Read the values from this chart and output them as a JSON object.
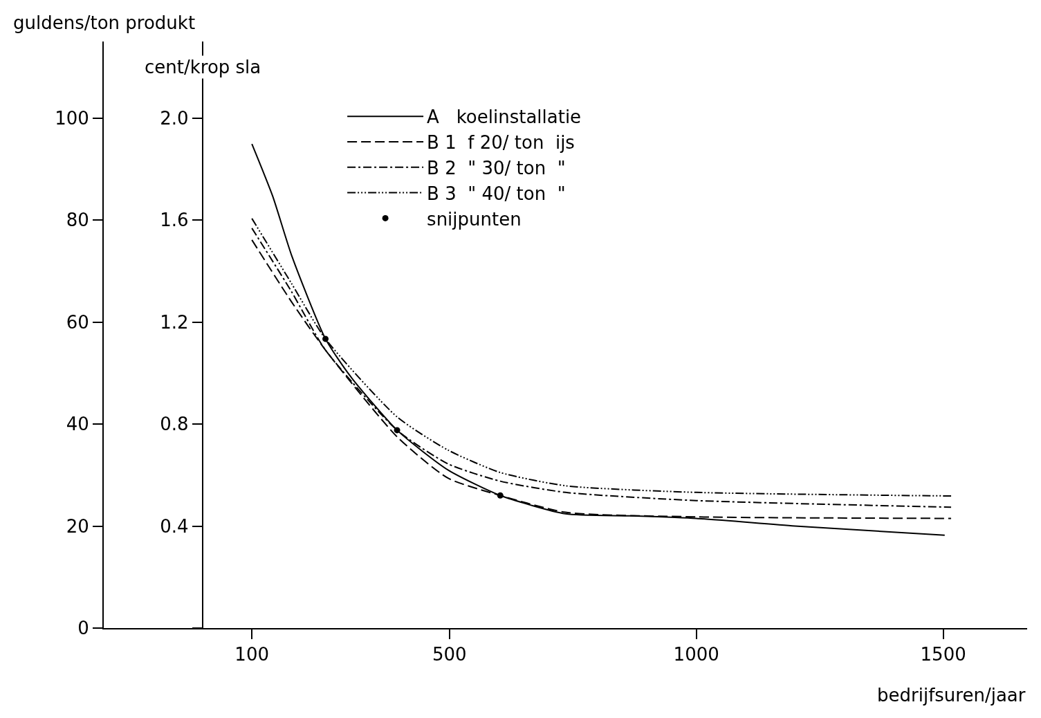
{
  "chart_data": {
    "type": "line",
    "xlabel": "bedrijfsuren/jaar",
    "ylabel": "guldens/ton produkt",
    "y2label": "cent/krop sla",
    "xlim": [
      -200,
      1670
    ],
    "xticks": [
      100,
      500,
      1000,
      1500
    ],
    "ylim": [
      0,
      115
    ],
    "yticks": [
      0,
      20,
      40,
      60,
      80,
      100
    ],
    "y2lim": [
      0,
      2.3
    ],
    "y2ticks": [
      {
        "value": 0,
        "label": null
      },
      {
        "value": 0.4,
        "label": "0.4"
      },
      {
        "value": 0.8,
        "label": "0.8"
      },
      {
        "value": 1.2,
        "label": "1.2"
      },
      {
        "value": 1.6,
        "label": "1.6"
      },
      {
        "value": 2.0,
        "label": "2.0"
      }
    ],
    "legend": "top",
    "marker": "none",
    "series": [
      {
        "name": "A   koelinstallatie",
        "color": "#000000",
        "line_style": "solid",
        "x": [
          100,
          142,
          181,
          249,
          300,
          394,
          497,
          603,
          735,
          868,
          1000,
          1200,
          1503
        ],
        "values": [
          94.9,
          84.7,
          72.9,
          56.7,
          49.3,
          38.8,
          31,
          26,
          22.4,
          22,
          21.5,
          20,
          18.2
        ]
      },
      {
        "name": "B 1  f 20/ ton  ijs",
        "color": "#000000",
        "line_style": "dashed",
        "x": [
          100,
          180,
          249,
          394,
          497,
          603,
          735,
          1000,
          1516
        ],
        "values": [
          76.1,
          64,
          54.5,
          37.5,
          29.4,
          26,
          22.7,
          21.8,
          21.5
        ]
      },
      {
        "name": "B 2  \" 30/ ton  \"",
        "color": "#000000",
        "line_style": "dashdot",
        "x": [
          100,
          180,
          249,
          394,
          497,
          603,
          735,
          1000,
          1516
        ],
        "values": [
          78.4,
          66,
          54.5,
          38.8,
          32.2,
          28.8,
          26.6,
          25,
          23.7
        ]
      },
      {
        "name": "B 3  \" 40/ ton  \"",
        "color": "#000000",
        "line_style": "dashdotdot",
        "x": [
          100,
          180,
          249,
          394,
          497,
          603,
          735,
          1000,
          1516
        ],
        "values": [
          80.3,
          67.6,
          56.7,
          41.4,
          34.9,
          30.5,
          27.9,
          26.6,
          25.9
        ]
      },
      {
        "name": "snijpunten",
        "type": "scatter",
        "marker": "circle",
        "color": "#000000",
        "x": [
          249,
          394,
          603
        ],
        "values": [
          56.7,
          38.8,
          26
        ]
      }
    ]
  }
}
